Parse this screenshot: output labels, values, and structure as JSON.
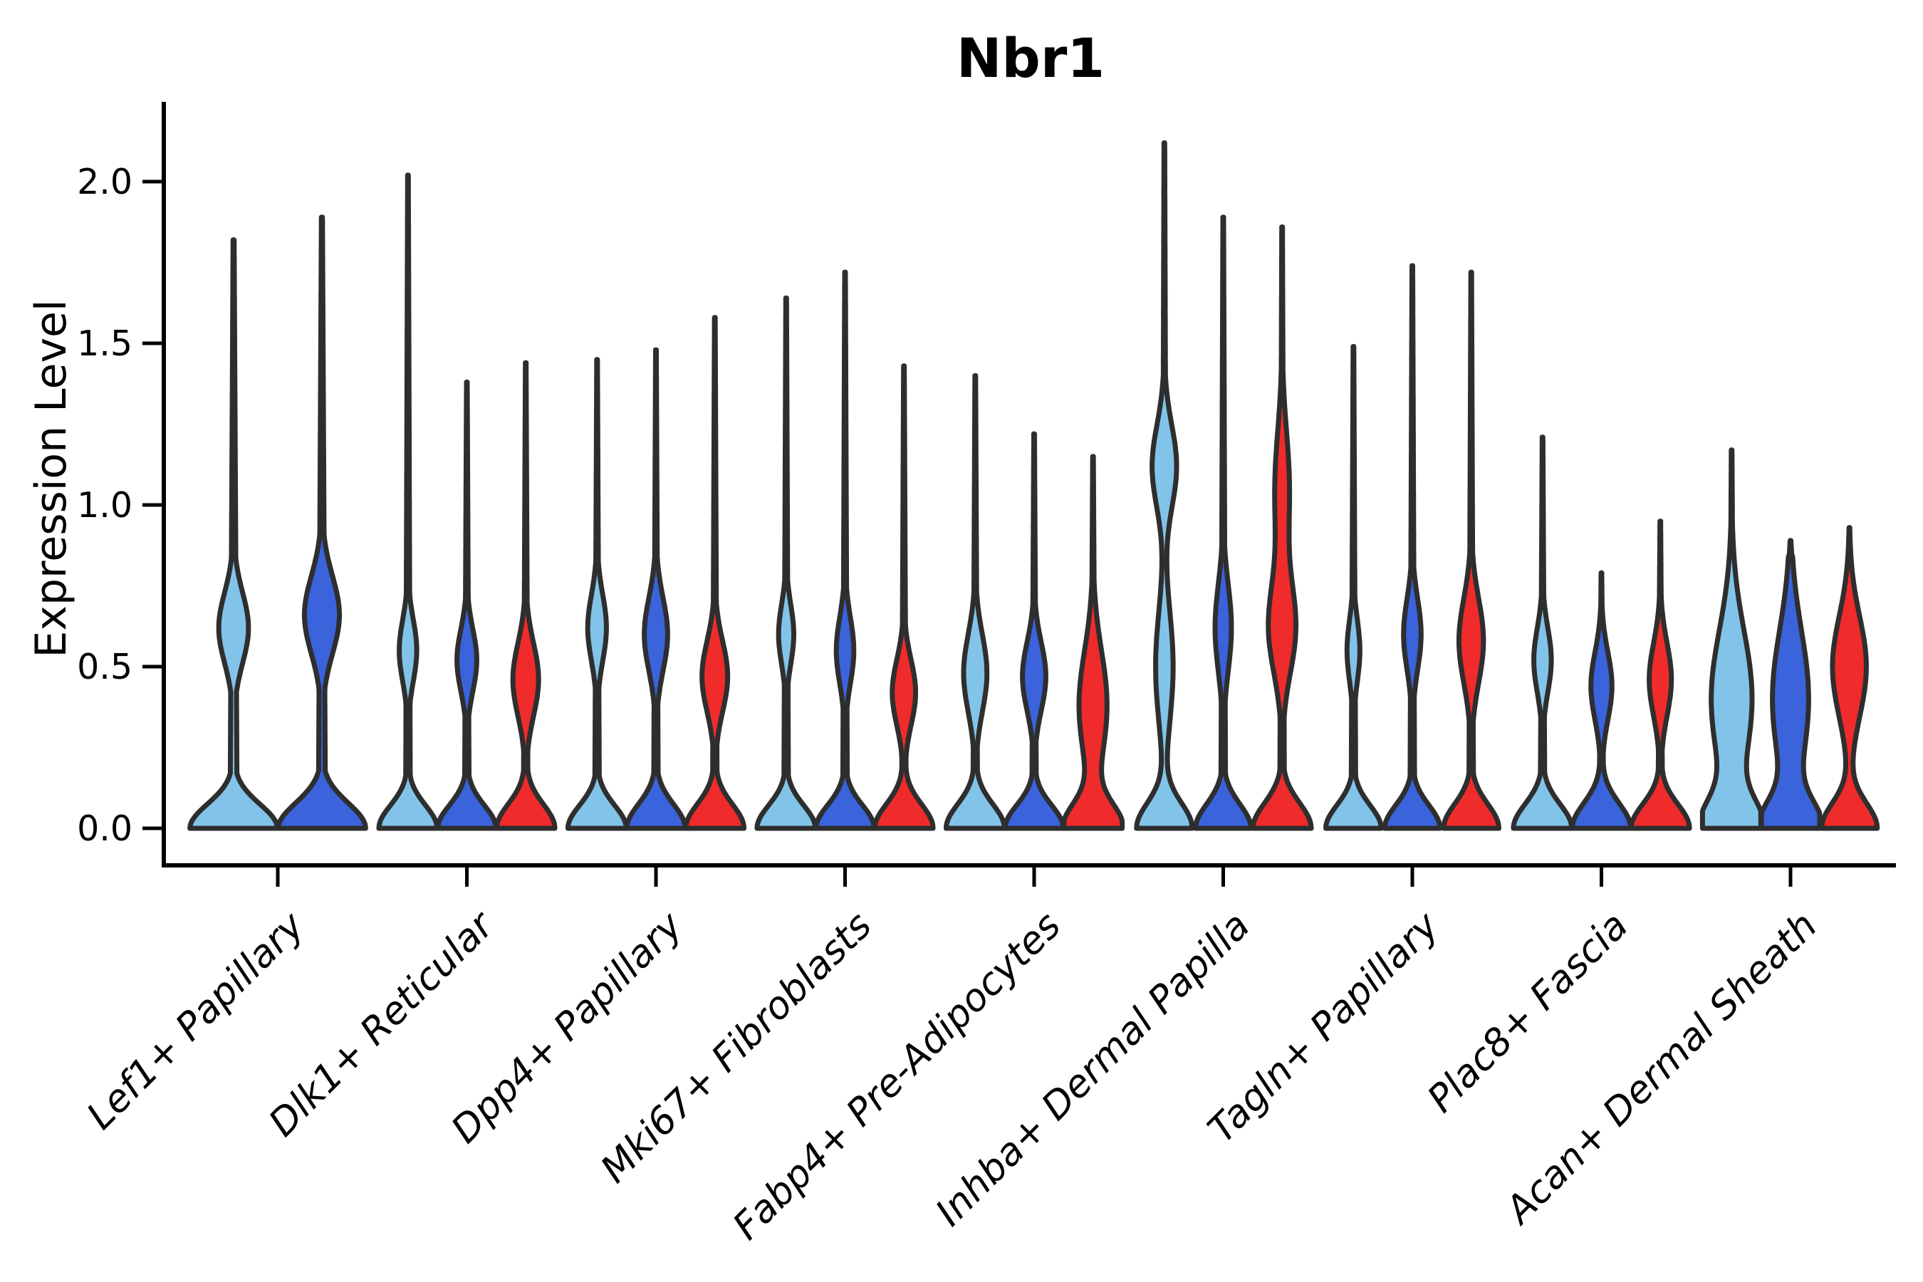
{
  "title": "Nbr1",
  "y_axis": {
    "label": "Expression Level",
    "ticks": [
      {
        "label": "0.0",
        "value": 0.0
      },
      {
        "label": "0.5",
        "value": 0.5
      },
      {
        "label": "1.0",
        "value": 1.0
      },
      {
        "label": "1.5",
        "value": 1.5
      },
      {
        "label": "2.0",
        "value": 2.0
      }
    ]
  },
  "chart_data": {
    "type": "violin",
    "title": "Nbr1",
    "xlabel": "",
    "ylabel": "Expression Level",
    "ylim": [
      -0.11,
      2.25
    ],
    "yticks": [
      0.0,
      0.5,
      1.0,
      1.5,
      2.0
    ],
    "grid": false,
    "legend_position": "none",
    "colors": {
      "light_blue": "#82C4E9",
      "dark_blue": "#3A63DC",
      "red": "#F02B2B",
      "outline": "#2E2E2E",
      "axis": "#000000"
    },
    "categories": [
      "Lef1+ Papillary",
      "Dlk1+ Reticular",
      "Dpp4+ Papillary",
      "Mki67+ Fibroblasts",
      "Fabp4+ Pre-Adipocytes",
      "Inhba+ Dermal Papilla",
      "Tagln+ Papillary",
      "Plac8+ Fascia",
      "Acan+ Dermal Sheath"
    ],
    "groups": [
      {
        "category": "Lef1+ Papillary",
        "violins": [
          {
            "sample": "light_blue",
            "max_expression": 1.82,
            "shape": {
              "base_w": 1.0,
              "base_sig": 0.105,
              "bulge_c": 0.62,
              "bulge_w": 0.34,
              "bulge_sig": 0.155
            }
          },
          {
            "sample": "dark_blue",
            "max_expression": 1.89,
            "shape": {
              "base_w": 1.0,
              "base_sig": 0.11,
              "bulge_c": 0.66,
              "bulge_w": 0.4,
              "bulge_sig": 0.17
            }
          }
        ]
      },
      {
        "category": "Dlk1+ Reticular",
        "violins": [
          {
            "sample": "light_blue",
            "max_expression": 2.02,
            "shape": {
              "base_w": 1.0,
              "base_sig": 0.1,
              "bulge_c": 0.55,
              "bulge_w": 0.3,
              "bulge_sig": 0.135
            }
          },
          {
            "sample": "dark_blue",
            "max_expression": 1.38,
            "shape": {
              "base_w": 1.0,
              "base_sig": 0.1,
              "bulge_c": 0.52,
              "bulge_w": 0.34,
              "bulge_sig": 0.135
            }
          },
          {
            "sample": "red",
            "max_expression": 1.44,
            "shape": {
              "base_w": 1.0,
              "base_sig": 0.105,
              "bulge_c": 0.46,
              "bulge_w": 0.44,
              "bulge_sig": 0.16
            }
          }
        ]
      },
      {
        "category": "Dpp4+ Papillary",
        "violins": [
          {
            "sample": "light_blue",
            "max_expression": 1.45,
            "shape": {
              "base_w": 1.0,
              "base_sig": 0.1,
              "bulge_c": 0.62,
              "bulge_w": 0.32,
              "bulge_sig": 0.145
            }
          },
          {
            "sample": "dark_blue",
            "max_expression": 1.48,
            "shape": {
              "base_w": 1.0,
              "base_sig": 0.105,
              "bulge_c": 0.6,
              "bulge_w": 0.4,
              "bulge_sig": 0.16
            }
          },
          {
            "sample": "red",
            "max_expression": 1.58,
            "shape": {
              "base_w": 1.0,
              "base_sig": 0.105,
              "bulge_c": 0.47,
              "bulge_w": 0.44,
              "bulge_sig": 0.155
            }
          }
        ]
      },
      {
        "category": "Mki67+ Fibroblasts",
        "violins": [
          {
            "sample": "light_blue",
            "max_expression": 1.64,
            "shape": {
              "base_w": 1.0,
              "base_sig": 0.1,
              "bulge_c": 0.6,
              "bulge_w": 0.26,
              "bulge_sig": 0.13
            }
          },
          {
            "sample": "dark_blue",
            "max_expression": 1.72,
            "shape": {
              "base_w": 1.0,
              "base_sig": 0.1,
              "bulge_c": 0.55,
              "bulge_w": 0.3,
              "bulge_sig": 0.145
            }
          },
          {
            "sample": "red",
            "max_expression": 1.43,
            "shape": {
              "base_w": 1.0,
              "base_sig": 0.105,
              "bulge_c": 0.42,
              "bulge_w": 0.4,
              "bulge_sig": 0.145
            }
          }
        ]
      },
      {
        "category": "Fabp4+ Pre-Adipocytes",
        "violins": [
          {
            "sample": "light_blue",
            "max_expression": 1.4,
            "shape": {
              "base_w": 1.0,
              "base_sig": 0.105,
              "bulge_c": 0.48,
              "bulge_w": 0.4,
              "bulge_sig": 0.17
            }
          },
          {
            "sample": "dark_blue",
            "max_expression": 1.22,
            "shape": {
              "base_w": 1.0,
              "base_sig": 0.1,
              "bulge_c": 0.47,
              "bulge_w": 0.4,
              "bulge_sig": 0.15
            }
          },
          {
            "sample": "red",
            "max_expression": 1.15,
            "shape": {
              "base_w": 1.0,
              "base_sig": 0.105,
              "bulge_c": 0.38,
              "bulge_w": 0.48,
              "bulge_sig": 0.24
            }
          }
        ]
      },
      {
        "category": "Inhba+ Dermal Papilla",
        "violins": [
          {
            "sample": "light_blue",
            "max_expression": 2.12,
            "shape": {
              "base_w": 0.95,
              "base_sig": 0.11,
              "bulge_c": 1.12,
              "bulge_w": 0.42,
              "bulge_sig": 0.18,
              "bulge2_c": 0.5,
              "bulge2_w": 0.3,
              "bulge2_sig": 0.25
            }
          },
          {
            "sample": "dark_blue",
            "max_expression": 1.89,
            "shape": {
              "base_w": 0.95,
              "base_sig": 0.105,
              "bulge_c": 0.62,
              "bulge_w": 0.28,
              "bulge_sig": 0.19
            }
          },
          {
            "sample": "red",
            "max_expression": 1.86,
            "shape": {
              "base_w": 1.0,
              "base_sig": 0.11,
              "bulge_c": 0.62,
              "bulge_w": 0.46,
              "bulge_sig": 0.2,
              "bulge2_c": 1.05,
              "bulge2_w": 0.25,
              "bulge2_sig": 0.25
            }
          }
        ]
      },
      {
        "category": "Tagln+ Papillary",
        "violins": [
          {
            "sample": "light_blue",
            "max_expression": 1.49,
            "shape": {
              "base_w": 0.95,
              "base_sig": 0.1,
              "bulge_c": 0.55,
              "bulge_w": 0.22,
              "bulge_sig": 0.135
            }
          },
          {
            "sample": "dark_blue",
            "max_expression": 1.74,
            "shape": {
              "base_w": 0.95,
              "base_sig": 0.1,
              "bulge_c": 0.6,
              "bulge_w": 0.3,
              "bulge_sig": 0.155
            }
          },
          {
            "sample": "red",
            "max_expression": 1.72,
            "shape": {
              "base_w": 0.95,
              "base_sig": 0.105,
              "bulge_c": 0.58,
              "bulge_w": 0.42,
              "bulge_sig": 0.185
            }
          }
        ]
      },
      {
        "category": "Plac8+ Fascia",
        "violins": [
          {
            "sample": "light_blue",
            "max_expression": 1.21,
            "shape": {
              "base_w": 1.0,
              "base_sig": 0.105,
              "bulge_c": 0.52,
              "bulge_w": 0.3,
              "bulge_sig": 0.14
            }
          },
          {
            "sample": "dark_blue",
            "max_expression": 0.79,
            "shape": {
              "base_w": 1.0,
              "base_sig": 0.11,
              "bulge_c": 0.44,
              "bulge_w": 0.36,
              "bulge_sig": 0.15
            }
          },
          {
            "sample": "red",
            "max_expression": 0.95,
            "shape": {
              "base_w": 1.0,
              "base_sig": 0.105,
              "bulge_c": 0.46,
              "bulge_w": 0.38,
              "bulge_sig": 0.16
            }
          }
        ]
      },
      {
        "category": "Acan+ Dermal Sheath",
        "violins": [
          {
            "sample": "light_blue",
            "max_expression": 1.17,
            "shape": {
              "base_w": 1.0,
              "base_sig": 0.12,
              "bulge_c": 0.4,
              "bulge_w": 0.7,
              "bulge_sig": 0.3
            }
          },
          {
            "sample": "dark_blue",
            "max_expression": 0.89,
            "shape": {
              "base_w": 1.0,
              "base_sig": 0.115,
              "bulge_c": 0.4,
              "bulge_w": 0.62,
              "bulge_sig": 0.3
            }
          },
          {
            "sample": "red",
            "max_expression": 0.93,
            "shape": {
              "base_w": 0.95,
              "base_sig": 0.11,
              "bulge_c": 0.5,
              "bulge_w": 0.58,
              "bulge_sig": 0.22
            }
          }
        ]
      }
    ]
  }
}
